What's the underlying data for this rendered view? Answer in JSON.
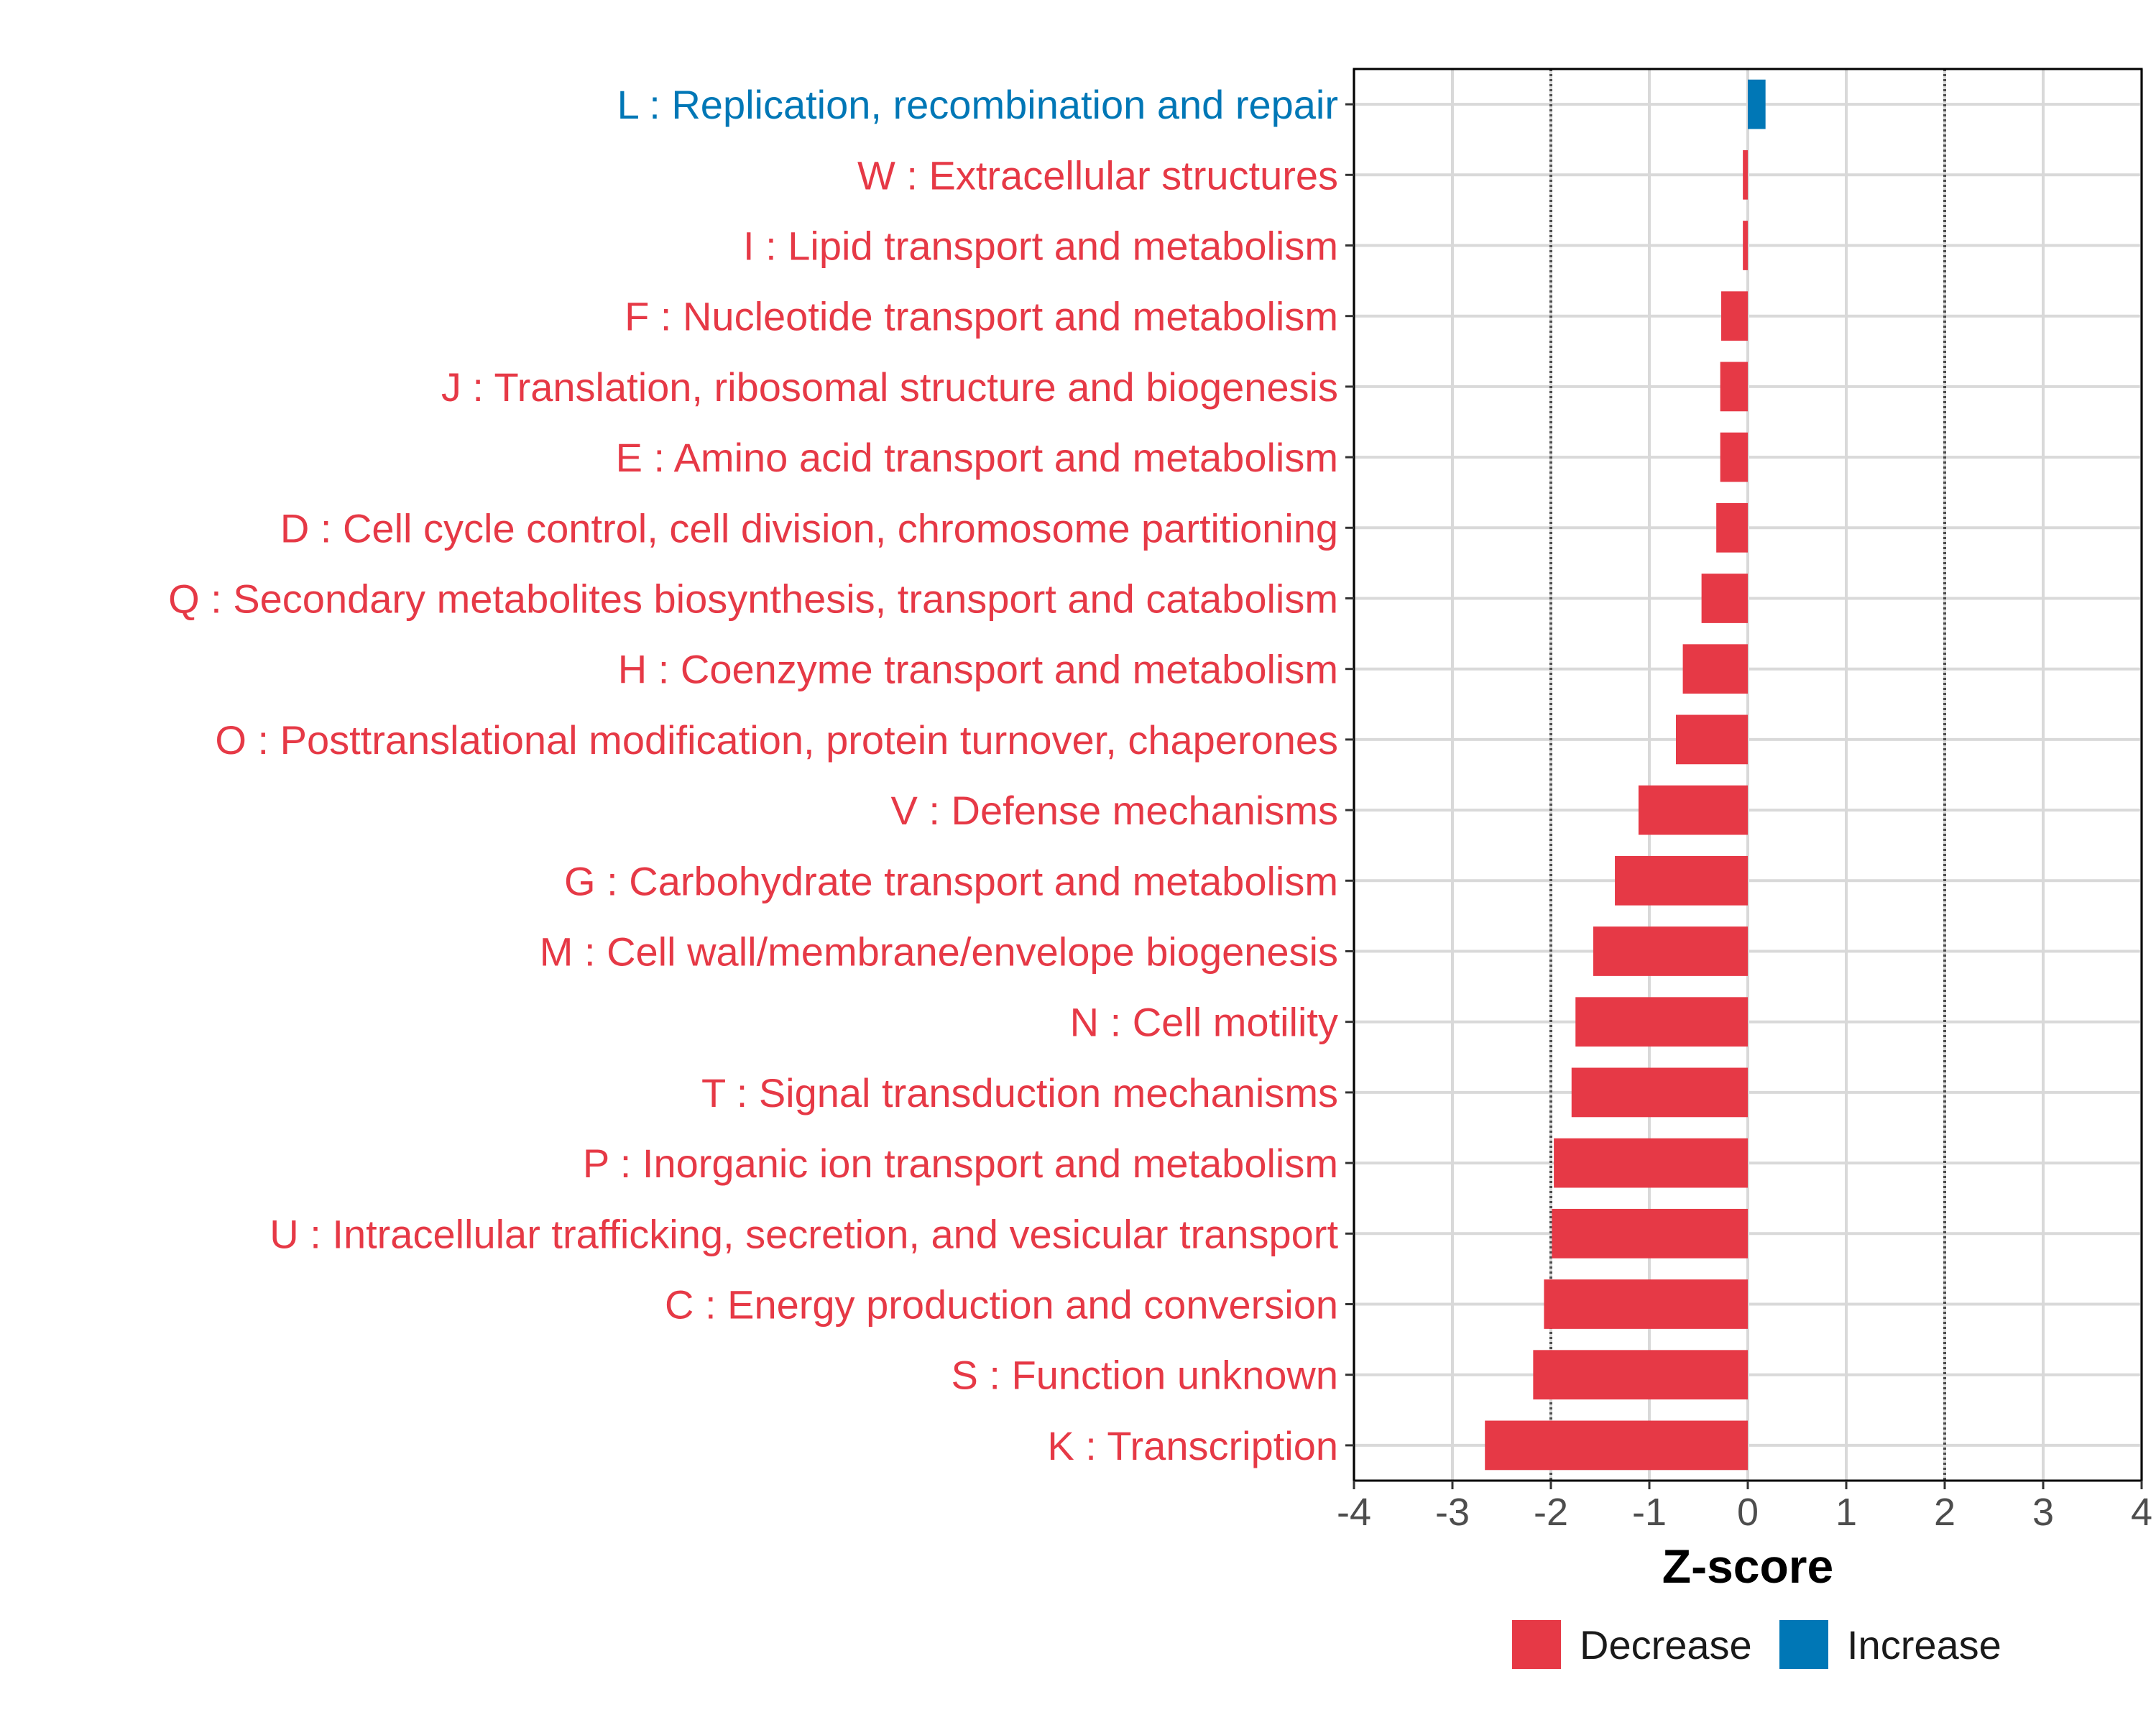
{
  "chart_data": {
    "type": "bar",
    "orientation": "horizontal",
    "xlabel": "Z-score",
    "ylabel": "",
    "xlim": [
      -4,
      4
    ],
    "xticks": [
      "-4",
      "-3",
      "-2",
      "-1",
      "0",
      "1",
      "2",
      "3",
      "4"
    ],
    "reference_lines": [
      -2,
      2
    ],
    "grid": true,
    "legend_position": "bottom",
    "colors": {
      "Decrease": "#e63946",
      "Increase": "#0077b6"
    },
    "categories": [
      "L : Replication, recombination and repair",
      "W : Extracellular structures",
      "I : Lipid transport and metabolism",
      "F : Nucleotide transport and metabolism",
      "J : Translation, ribosomal structure and biogenesis",
      "E : Amino acid transport and metabolism",
      "D : Cell cycle control, cell division, chromosome partitioning",
      "Q : Secondary metabolites biosynthesis, transport and catabolism",
      "H : Coenzyme transport and metabolism",
      "O : Posttranslational modification, protein turnover, chaperones",
      "V : Defense mechanisms",
      "G : Carbohydrate transport and metabolism",
      "M : Cell wall/membrane/envelope biogenesis",
      "N : Cell motility",
      "T : Signal transduction mechanisms",
      "P : Inorganic ion transport and metabolism",
      "U : Intracellular trafficking, secretion, and vesicular transport",
      "C : Energy production and conversion",
      "S : Function unknown",
      "K : Transcription"
    ],
    "values": [
      0.18,
      -0.05,
      -0.05,
      -0.27,
      -0.28,
      -0.28,
      -0.32,
      -0.47,
      -0.66,
      -0.73,
      -1.11,
      -1.35,
      -1.57,
      -1.75,
      -1.79,
      -1.97,
      -1.99,
      -2.07,
      -2.18,
      -2.67
    ],
    "groups": [
      "Increase",
      "Decrease",
      "Decrease",
      "Decrease",
      "Decrease",
      "Decrease",
      "Decrease",
      "Decrease",
      "Decrease",
      "Decrease",
      "Decrease",
      "Decrease",
      "Decrease",
      "Decrease",
      "Decrease",
      "Decrease",
      "Decrease",
      "Decrease",
      "Decrease",
      "Decrease"
    ],
    "legend": [
      "Decrease",
      "Increase"
    ]
  }
}
